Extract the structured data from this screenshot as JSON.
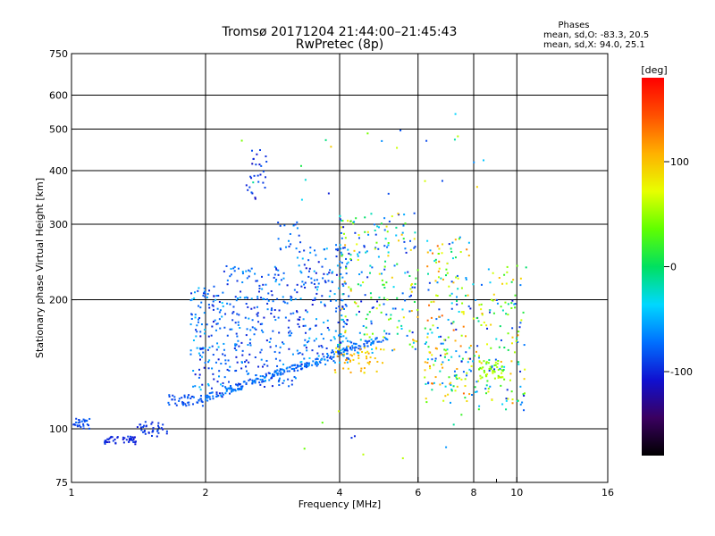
{
  "chart_data": {
    "type": "scatter",
    "title": "Tromsø 20171204 21:44:00–21:45:43",
    "subtitle": "RwPretec (8p)",
    "xlabel": "Frequency [MHz]",
    "ylabel": "Stationary phase Virtual Height [km]",
    "x_scale": "log2",
    "y_scale": "log",
    "xlim": [
      1,
      16
    ],
    "ylim": [
      75,
      750
    ],
    "x_ticks": [
      1,
      2,
      4,
      6,
      8,
      10,
      16
    ],
    "x_minor_grid": [
      6,
      8,
      10
    ],
    "x_tick_labels": [
      "1",
      "2",
      "4",
      "6",
      "8",
      "10",
      "16"
    ],
    "x_minor_ticks": [
      9
    ],
    "y_ticks": [
      75,
      100,
      200,
      300,
      400,
      500,
      600,
      750
    ],
    "y_tick_labels": [
      "75",
      "100",
      "200",
      "300",
      "400",
      "500",
      "600",
      "750"
    ],
    "grid": true,
    "phase_info": {
      "header": "Phases",
      "line1": "mean, sd,O: -83.3, 20.5",
      "line2": "mean, sd,X:  94.0, 25.1"
    },
    "colorbar": {
      "label": "[deg]",
      "range": [
        -180,
        180
      ],
      "ticks": [
        -100,
        0,
        100
      ],
      "tick_labels": [
        "-100",
        "0",
        "100"
      ],
      "colors": [
        "#000000",
        "#3a0060",
        "#1010d0",
        "#0070ff",
        "#00d8ff",
        "#00e060",
        "#60ff00",
        "#e8ff00",
        "#ffb000",
        "#ff5000",
        "#ff0000"
      ]
    },
    "clusters": [
      {
        "name": "low-trace-left",
        "f": [
          1.0,
          1.1
        ],
        "h": [
          100,
          106
        ],
        "phase": [
          -95,
          -75
        ],
        "n": 30
      },
      {
        "name": "low-trace-flat",
        "f": [
          1.18,
          1.4
        ],
        "h": [
          92,
          96
        ],
        "phase": [
          -110,
          -90
        ],
        "n": 45
      },
      {
        "name": "low-trace-rise",
        "f": [
          1.4,
          1.65
        ],
        "h": [
          96,
          104
        ],
        "phase": [
          -105,
          -85
        ],
        "n": 35
      },
      {
        "name": "o-trace-step",
        "f": [
          1.65,
          2.0
        ],
        "h": [
          113,
          120
        ],
        "phase": [
          -95,
          -75
        ],
        "n": 45
      },
      {
        "name": "o-trace-main",
        "f": [
          2.0,
          5.2
        ],
        "h": [
          118,
          165
        ],
        "phase": [
          -90,
          -60
        ],
        "n": 230,
        "curve": true
      },
      {
        "name": "spread-2MHz",
        "f": [
          1.85,
          2.2
        ],
        "h": [
          118,
          215
        ],
        "phase": [
          -110,
          -40
        ],
        "n": 130
      },
      {
        "name": "spread-2-3MHz",
        "f": [
          2.2,
          3.2
        ],
        "h": [
          125,
          240
        ],
        "phase": [
          -105,
          -50
        ],
        "n": 240
      },
      {
        "name": "spread-3-4MHz",
        "f": [
          3.2,
          4.2
        ],
        "h": [
          140,
          270
        ],
        "phase": [
          -110,
          -40
        ],
        "n": 200
      },
      {
        "name": "cusp-2.6MHz",
        "f": [
          2.45,
          2.8
        ],
        "h": [
          340,
          450
        ],
        "phase": [
          -115,
          -80
        ],
        "n": 28
      },
      {
        "name": "upper-3MHz",
        "f": [
          2.9,
          3.3
        ],
        "h": [
          260,
          310
        ],
        "phase": [
          -100,
          -60
        ],
        "n": 18
      },
      {
        "name": "x-trace-yellow",
        "f": [
          3.9,
          5.0
        ],
        "h": [
          135,
          155
        ],
        "phase": [
          80,
          120
        ],
        "n": 45
      },
      {
        "name": "spread-4-6MHz",
        "f": [
          4.0,
          6.0
        ],
        "h": [
          150,
          320
        ],
        "phase": [
          -110,
          110
        ],
        "n": 230
      },
      {
        "name": "mixed-6-8MHz",
        "f": [
          6.2,
          8.0
        ],
        "h": [
          115,
          280
        ],
        "phase": [
          -110,
          140
        ],
        "n": 200
      },
      {
        "name": "mixed-8-10MHz",
        "f": [
          8.0,
          10.5
        ],
        "h": [
          110,
          240
        ],
        "phase": [
          -110,
          120
        ],
        "n": 140
      },
      {
        "name": "green-8-9MHz",
        "f": [
          8.2,
          9.4
        ],
        "h": [
          130,
          145
        ],
        "phase": [
          30,
          70
        ],
        "n": 45
      },
      {
        "name": "sparse-high",
        "f": [
          2.0,
          9.5
        ],
        "h": [
          330,
          560
        ],
        "phase": [
          -110,
          120
        ],
        "n": 22
      },
      {
        "name": "sparse-low",
        "f": [
          2.0,
          11.0
        ],
        "h": [
          85,
          110
        ],
        "phase": [
          -110,
          80
        ],
        "n": 10
      }
    ]
  }
}
